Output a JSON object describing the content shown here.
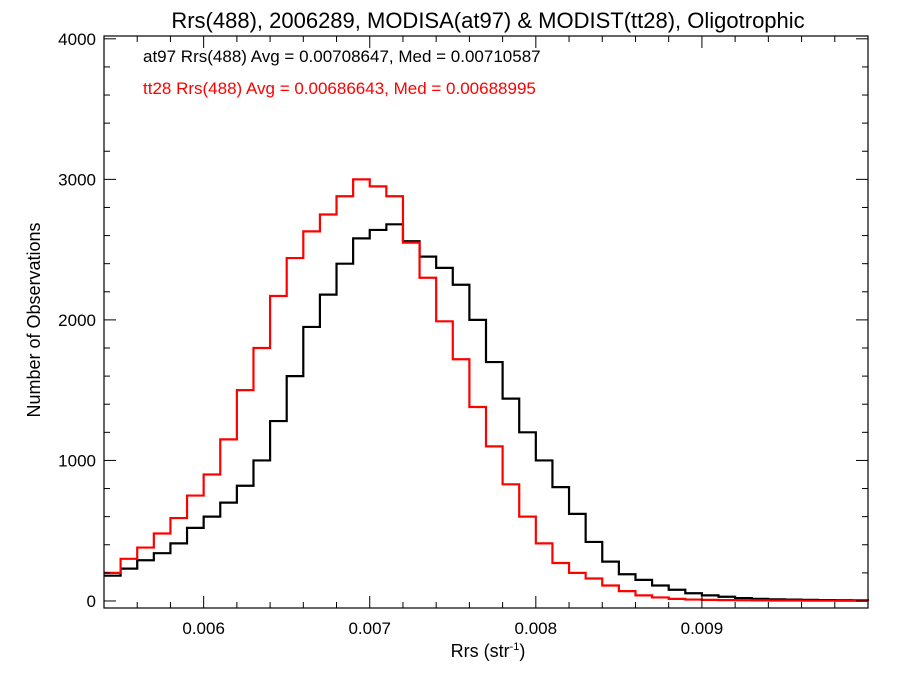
{
  "chart_data": {
    "type": "line",
    "title": "Rrs(488), 2006289, MODISA(at97) & MODIST(tt28), Oligotrophic",
    "xlabel_main": "Rrs (str",
    "xlabel_sup": "-1",
    "xlabel_close": ")",
    "ylabel": "Number of Observations",
    "xlim": [
      0.0054,
      0.01
    ],
    "ylim": [
      -50,
      4020
    ],
    "xticks": [
      0.006,
      0.007,
      0.008,
      0.009
    ],
    "xtick_labels": [
      "0.006",
      "0.007",
      "0.008",
      "0.009"
    ],
    "yticks": [
      0,
      1000,
      2000,
      3000,
      4000
    ],
    "ytick_labels": [
      "0",
      "1000",
      "2000",
      "3000",
      "4000"
    ],
    "x_minor_step": 0.0002,
    "y_minor_step": 200,
    "grid": false,
    "legend_placement": "top-left",
    "series": [
      {
        "name": "at97 Rrs(488) Avg = 0.00708647, Med = 0.00710587",
        "color": "#000000",
        "x": [
          0.0054,
          0.0055,
          0.0056,
          0.0057,
          0.0058,
          0.0059,
          0.006,
          0.0061,
          0.0062,
          0.0063,
          0.0064,
          0.0065,
          0.0066,
          0.0067,
          0.0068,
          0.0069,
          0.007,
          0.0071,
          0.0072,
          0.0073,
          0.0074,
          0.0075,
          0.0076,
          0.0077,
          0.0078,
          0.0079,
          0.008,
          0.0081,
          0.0082,
          0.0083,
          0.0084,
          0.0085,
          0.0086,
          0.0087,
          0.0088,
          0.0089,
          0.009,
          0.0091,
          0.0092,
          0.0093,
          0.0094,
          0.0095,
          0.0096,
          0.0097,
          0.0098,
          0.0099,
          0.01
        ],
        "y": [
          180,
          230,
          290,
          340,
          410,
          520,
          600,
          700,
          820,
          1000,
          1280,
          1600,
          1950,
          2180,
          2400,
          2580,
          2640,
          2680,
          2560,
          2450,
          2370,
          2250,
          2000,
          1700,
          1440,
          1200,
          1000,
          810,
          620,
          420,
          280,
          190,
          150,
          110,
          80,
          55,
          40,
          30,
          20,
          15,
          12,
          10,
          8,
          6,
          5,
          4,
          3
        ]
      },
      {
        "name": "tt28 Rrs(488) Avg = 0.00686643, Med = 0.00688995",
        "color": "#ff0000",
        "x": [
          0.0054,
          0.0055,
          0.0056,
          0.0057,
          0.0058,
          0.0059,
          0.006,
          0.0061,
          0.0062,
          0.0063,
          0.0064,
          0.0065,
          0.0066,
          0.0067,
          0.0068,
          0.0069,
          0.007,
          0.0071,
          0.0072,
          0.0073,
          0.0074,
          0.0075,
          0.0076,
          0.0077,
          0.0078,
          0.0079,
          0.008,
          0.0081,
          0.0082,
          0.0083,
          0.0084,
          0.0085,
          0.0086,
          0.0087,
          0.0088,
          0.0089,
          0.009,
          0.0091,
          0.0092,
          0.0093,
          0.0094,
          0.0095,
          0.0096,
          0.0097,
          0.0098,
          0.0099,
          0.01
        ],
        "y": [
          200,
          300,
          380,
          480,
          590,
          750,
          900,
          1150,
          1500,
          1800,
          2170,
          2440,
          2630,
          2750,
          2880,
          3000,
          2950,
          2880,
          2550,
          2300,
          1990,
          1720,
          1380,
          1100,
          830,
          600,
          410,
          270,
          200,
          160,
          110,
          70,
          40,
          25,
          15,
          10,
          8,
          6,
          5,
          4,
          3,
          3,
          2,
          2,
          1,
          1,
          0
        ]
      }
    ]
  }
}
